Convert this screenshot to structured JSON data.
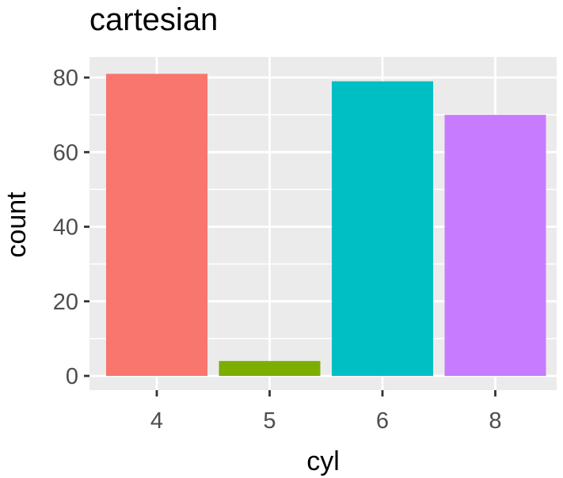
{
  "chart_data": {
    "type": "bar",
    "title": "cartesian",
    "xlabel": "cyl",
    "ylabel": "count",
    "categories": [
      "4",
      "5",
      "6",
      "8"
    ],
    "values": [
      81,
      4,
      79,
      70
    ],
    "colors": [
      "#F8766D",
      "#7CAE00",
      "#00BFC4",
      "#C77CFF"
    ],
    "ylim": [
      0,
      85
    ],
    "yticks": [
      0,
      20,
      40,
      60,
      80
    ],
    "panel_background": "#EBEBEB",
    "grid": true,
    "grid_color": "#FFFFFF",
    "legend": "none"
  }
}
